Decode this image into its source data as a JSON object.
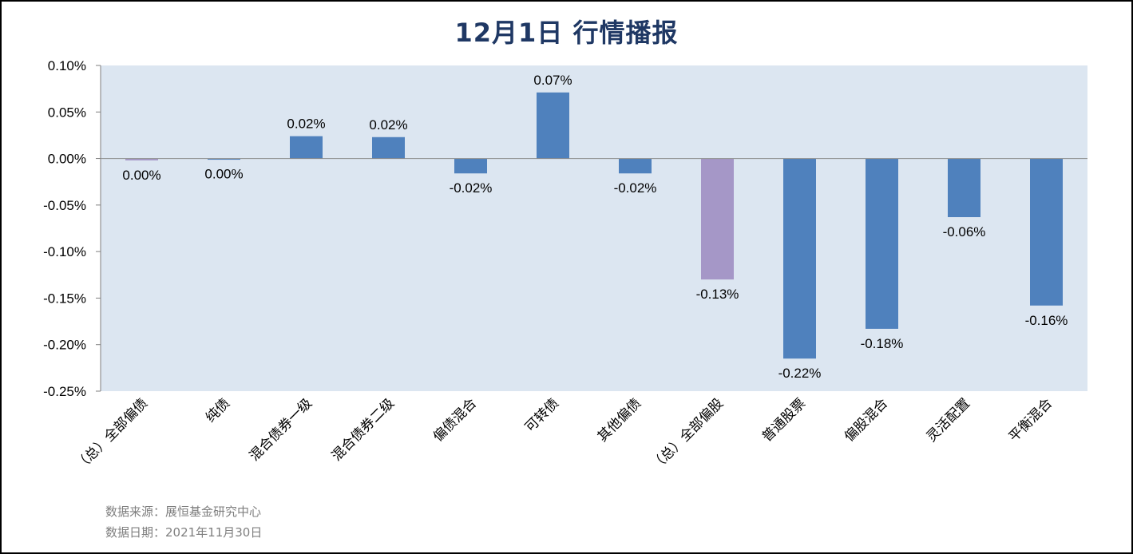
{
  "title": "12月1日  行情播报",
  "source_lines": [
    "数据来源：展恒基金研究中心",
    "数据日期：2021年11月30日"
  ],
  "colors": {
    "plot_bg": "#dce6f1",
    "bar": "#4f81bd",
    "highlight": "#a597c7",
    "title": "#1f3864"
  },
  "chart_data": {
    "type": "bar",
    "title": "12月1日  行情播报",
    "xlabel": "",
    "ylabel": "",
    "ylim": [
      -0.25,
      0.1
    ],
    "yticks": [
      0.1,
      0.05,
      0.0,
      -0.05,
      -0.1,
      -0.15,
      -0.2,
      -0.25
    ],
    "ytick_labels": [
      "0.10%",
      "0.05%",
      "0.00%",
      "-0.05%",
      "-0.10%",
      "-0.15%",
      "-0.20%",
      "-0.25%"
    ],
    "grid": false,
    "categories": [
      "（总）全部偏债",
      "纯债",
      "混合债券一级",
      "混合债券二级",
      "偏债混合",
      "可转债",
      "其他偏债",
      "（总）全部偏股",
      "普通股票",
      "偏股混合",
      "灵活配置",
      "平衡混合"
    ],
    "values": [
      -0.002,
      -0.001,
      0.024,
      0.023,
      -0.016,
      0.071,
      -0.016,
      -0.13,
      -0.215,
      -0.183,
      -0.063,
      -0.158
    ],
    "value_labels": [
      "0.00%",
      "0.00%",
      "0.02%",
      "0.02%",
      "-0.02%",
      "0.07%",
      "-0.02%",
      "-0.13%",
      "-0.22%",
      "-0.18%",
      "-0.06%",
      "-0.16%"
    ],
    "highlight_categories": [
      "（总）全部偏债",
      "（总）全部偏股"
    ]
  }
}
